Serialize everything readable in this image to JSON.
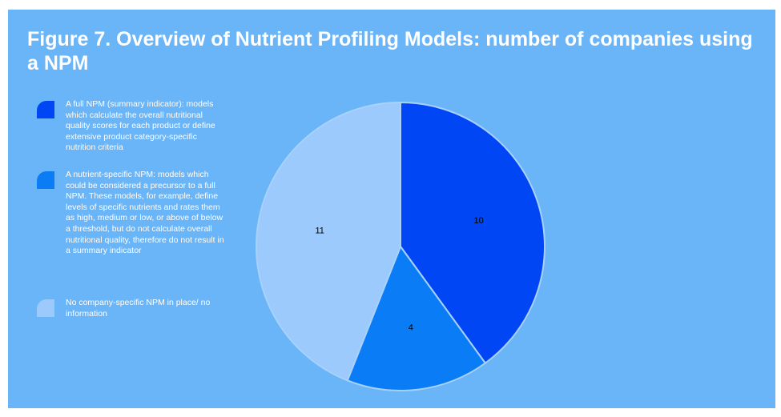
{
  "chart_data": {
    "type": "pie",
    "title": "Figure 7. Overview of Nutrient Profiling Models: number of companies using a NPM",
    "categories": [
      "A full NPM (summary indicator): models which calculate the overall nutritional quality scores for each product or define extensive product category-specific nutrition criteria",
      "A nutrient-specific NPM: models which could be considered a precursor to a full NPM. These models, for example, define levels of specific nutrients and rates them as high, medium or low, or above of below a threshold, but do not calculate overall nutritional quality, therefore do not result in a summary indicator",
      "No company-specific NPM in place/ no information"
    ],
    "values": [
      10,
      4,
      11
    ],
    "colors": [
      "#0046f5",
      "#0a7df6",
      "#9ccafc"
    ],
    "legend": "left"
  }
}
